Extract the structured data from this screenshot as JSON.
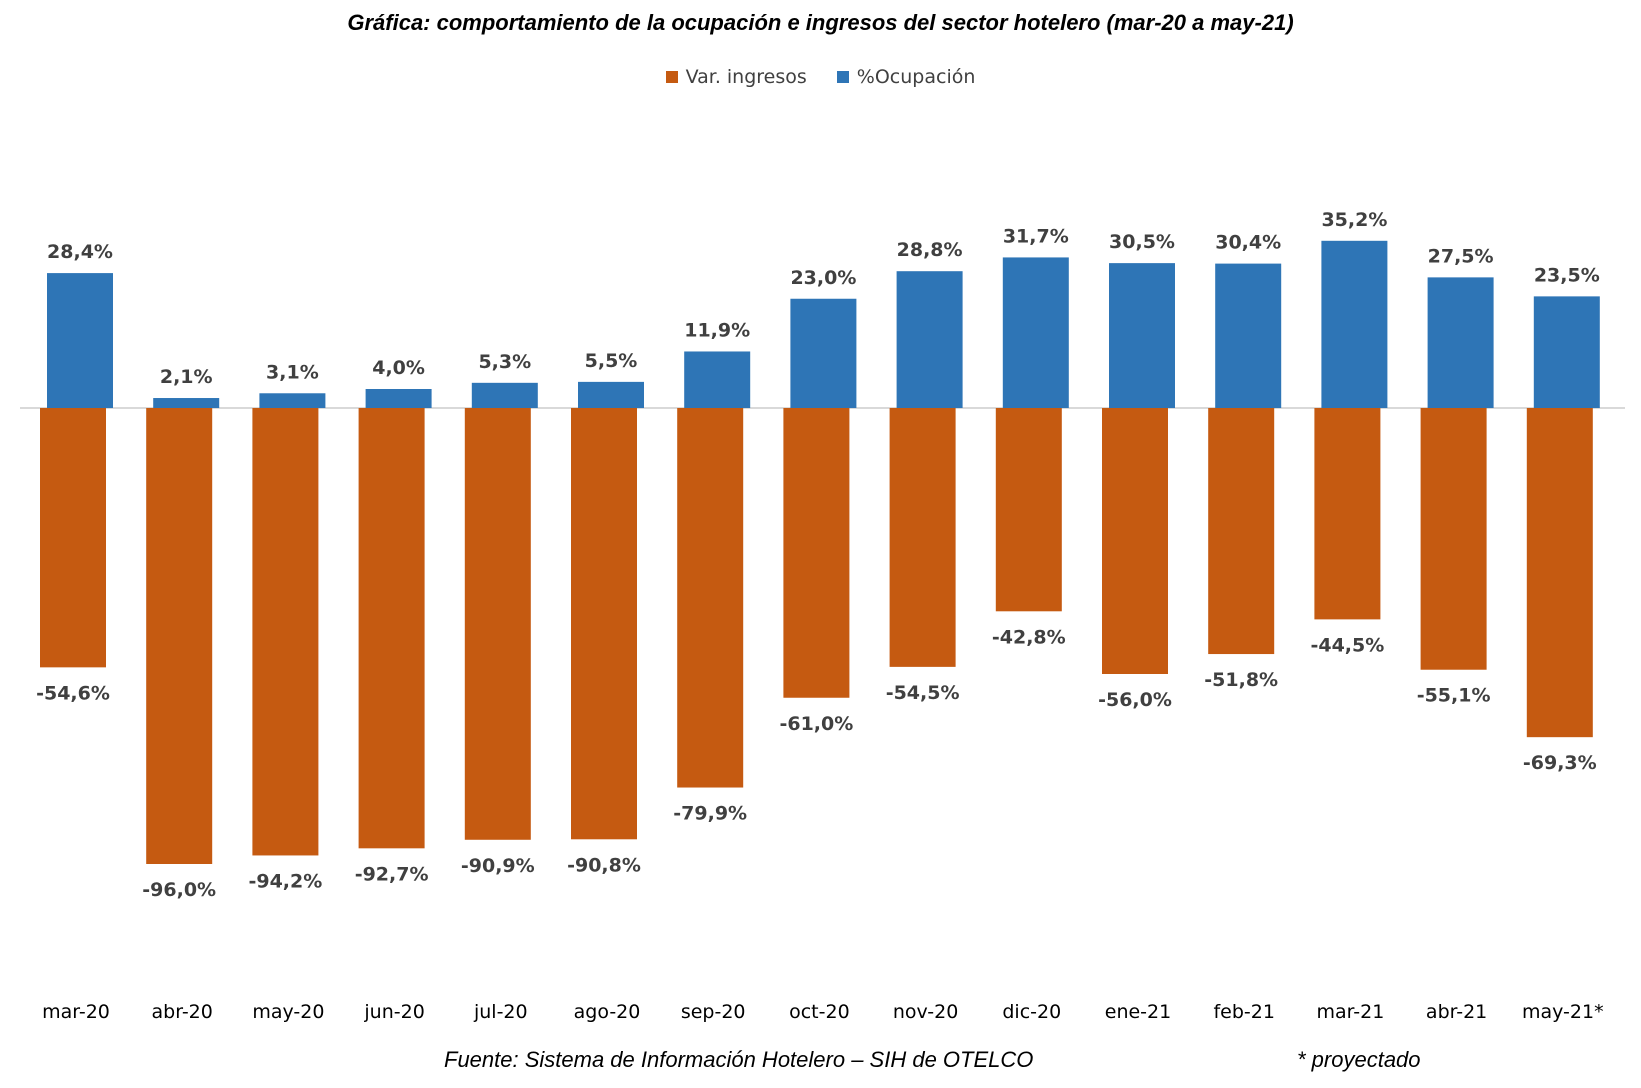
{
  "chart_data": {
    "type": "bar",
    "title": "Gráfica: comportamiento de la ocupación e ingresos del sector hotelero (mar-20 a may-21)",
    "categories": [
      "mar-20",
      "abr-20",
      "may-20",
      "jun-20",
      "jul-20",
      "ago-20",
      "sep-20",
      "oct-20",
      "nov-20",
      "dic-20",
      "ene-21",
      "feb-21",
      "mar-21",
      "abr-21",
      "may-21*"
    ],
    "series": [
      {
        "name": "Var. ingresos",
        "color": "#c55a11",
        "values": [
          -54.6,
          -96.0,
          -94.2,
          -92.7,
          -90.9,
          -90.8,
          -79.9,
          -61.0,
          -54.5,
          -42.8,
          -56.0,
          -51.8,
          -44.5,
          -55.1,
          -69.3
        ],
        "labels": [
          "-54,6%",
          "-96,0%",
          "-94,2%",
          "-92,7%",
          "-90,9%",
          "-90,8%",
          "-79,9%",
          "-61,0%",
          "-54,5%",
          "-42,8%",
          "-56,0%",
          "-51,8%",
          "-44,5%",
          "-55,1%",
          "-69,3%"
        ]
      },
      {
        "name": "%Ocupación",
        "color": "#2e75b6",
        "values": [
          28.4,
          2.1,
          3.1,
          4.0,
          5.3,
          5.5,
          11.9,
          23.0,
          28.8,
          31.7,
          30.5,
          30.4,
          35.2,
          27.5,
          23.5
        ],
        "labels": [
          "28,4%",
          "2,1%",
          "3,1%",
          "4,0%",
          "5,3%",
          "5,5%",
          "11,9%",
          "23,0%",
          "28,8%",
          "31,7%",
          "30,5%",
          "30,4%",
          "35,2%",
          "27,5%",
          "23,5%"
        ]
      }
    ],
    "ylim": [
      -100,
      40
    ],
    "xlabel": "",
    "ylabel": "",
    "grid": false,
    "legend_position": "top-center"
  },
  "footer": {
    "source": "Fuente: Sistema de Información Hotelero – SIH de OTELCO",
    "note": "* proyectado"
  }
}
